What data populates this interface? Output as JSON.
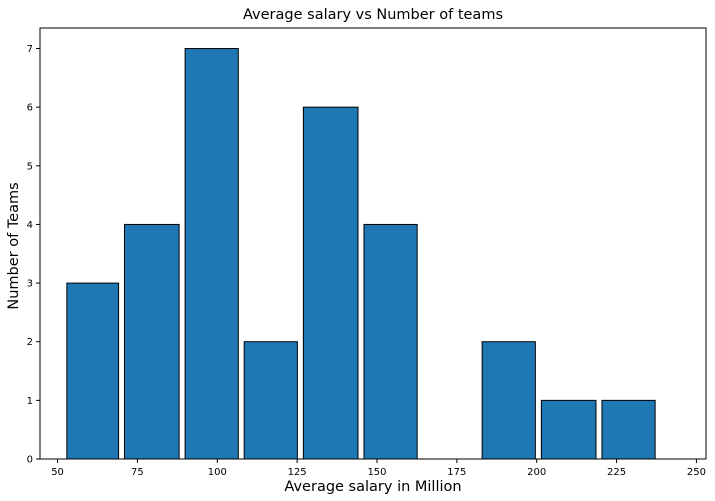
{
  "chart_data": {
    "type": "bar",
    "title": "Average salary vs Number of teams",
    "xlabel": "Average salary in Million",
    "ylabel": "Number of Teams",
    "bins": [
      {
        "x0": 52,
        "x1": 70,
        "value": 3
      },
      {
        "x0": 70,
        "x1": 89,
        "value": 4
      },
      {
        "x0": 89,
        "x1": 107.5,
        "value": 7
      },
      {
        "x0": 107.5,
        "x1": 126,
        "value": 2
      },
      {
        "x0": 126,
        "x1": 145,
        "value": 6
      },
      {
        "x0": 145,
        "x1": 163.5,
        "value": 4
      },
      {
        "x0": 163.5,
        "x1": 182,
        "value": 0
      },
      {
        "x0": 182,
        "x1": 200.5,
        "value": 2
      },
      {
        "x0": 200.5,
        "x1": 219.5,
        "value": 1
      },
      {
        "x0": 219.5,
        "x1": 238,
        "value": 1
      }
    ],
    "xlim": [
      44.5,
      253
    ],
    "ylim": [
      0,
      7.35
    ],
    "xticks": [
      50,
      75,
      100,
      125,
      150,
      175,
      200,
      225,
      250
    ],
    "yticks": [
      0,
      1,
      2,
      3,
      4,
      5,
      6,
      7
    ],
    "bar_color": "#1f77b4",
    "edge_color": "#000000",
    "grid": false
  }
}
